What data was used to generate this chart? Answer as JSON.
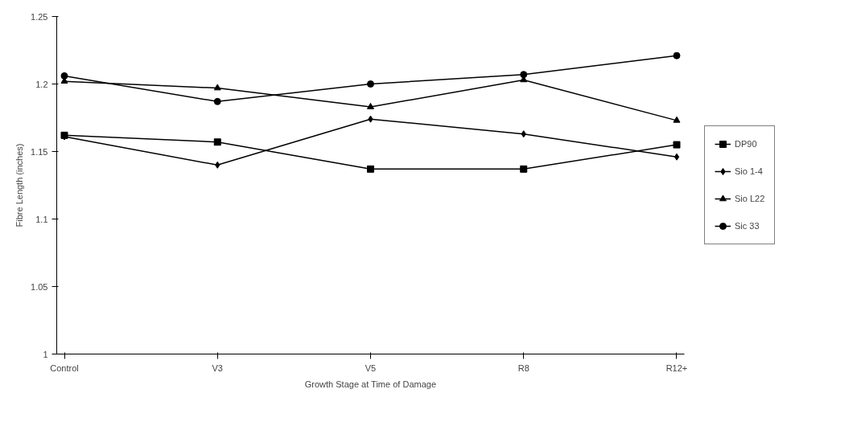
{
  "chart_data": {
    "type": "line",
    "xlabel": "Growth Stage at Time of Damage",
    "ylabel": "Fibre Length (inches)",
    "categories": [
      "Control",
      "V3",
      "V5",
      "R8",
      "R12+"
    ],
    "series": [
      {
        "name": "DP90",
        "color": "#000000",
        "marker": "square",
        "values": [
          1.162,
          1.157,
          1.137,
          1.137,
          1.155
        ]
      },
      {
        "name": "Sio 1-4",
        "color": "#000000",
        "marker": "diamond",
        "values": [
          1.161,
          1.14,
          1.174,
          1.163,
          1.146
        ]
      },
      {
        "name": "Sio L22",
        "color": "#000000",
        "marker": "triangle",
        "values": [
          1.202,
          1.197,
          1.183,
          1.203,
          1.173
        ]
      },
      {
        "name": "Sic 33",
        "color": "#000000",
        "marker": "circle",
        "values": [
          1.206,
          1.187,
          1.2,
          1.207,
          1.221
        ]
      }
    ],
    "ylim": [
      1,
      1.25
    ],
    "yticks": [
      1,
      1.05,
      1.1,
      1.15,
      1.2,
      1.25
    ],
    "grid": false,
    "legend": "right",
    "line_style": "solid"
  }
}
